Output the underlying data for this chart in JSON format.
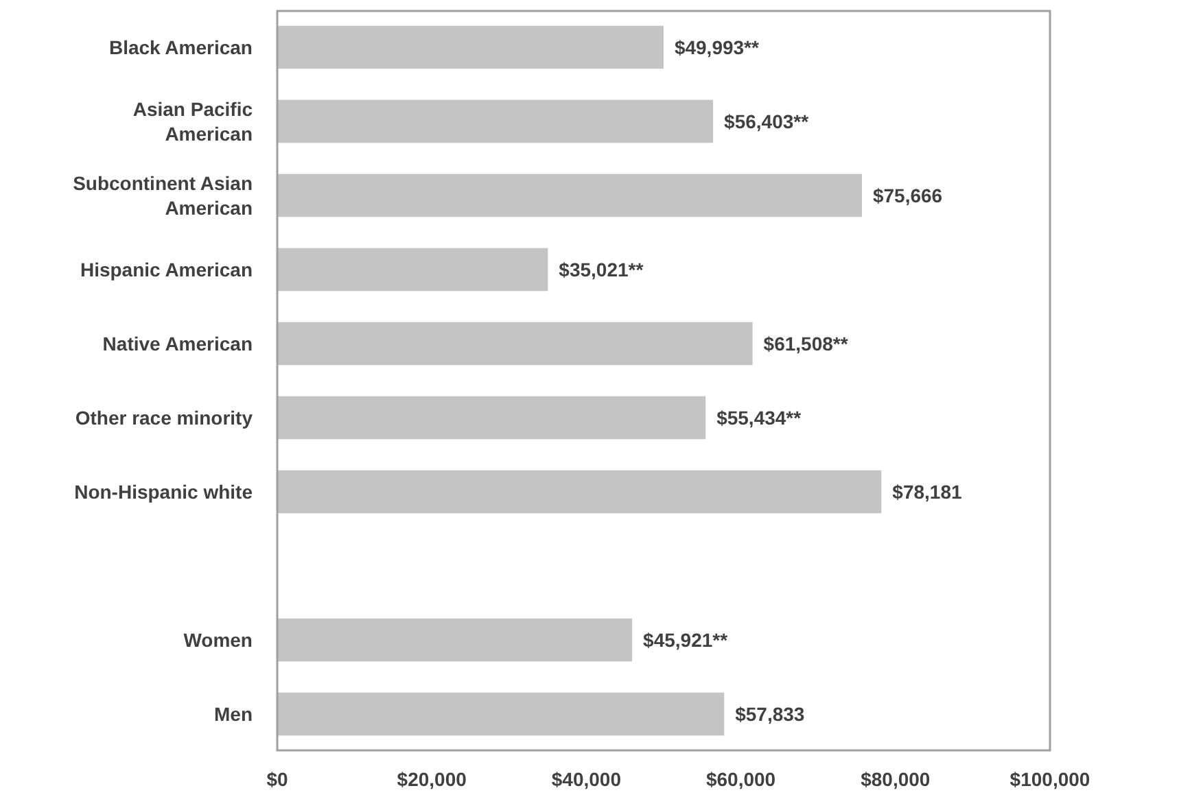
{
  "chart_data": {
    "type": "bar",
    "orientation": "horizontal",
    "categories": [
      "Black American",
      "Asian Pacific American",
      "Subcontinent Asian American",
      "Hispanic American",
      "Native American",
      "Other race minority",
      "Non-Hispanic white",
      null,
      "Women",
      "Men"
    ],
    "values": [
      49993,
      56403,
      75666,
      35021,
      61508,
      55434,
      78181,
      null,
      45921,
      57833
    ],
    "value_labels": [
      "$49,993**",
      "$56,403**",
      "$75,666",
      "$35,021**",
      "$61,508**",
      "$55,434**",
      "$78,181",
      null,
      "$45,921**",
      "$57,833"
    ],
    "color": "#c4c4c4",
    "xlim": [
      0,
      100000
    ],
    "xticks": [
      {
        "value": 0,
        "label": "$0"
      },
      {
        "value": 20000,
        "label": "$20,000"
      },
      {
        "value": 40000,
        "label": "$40,000"
      },
      {
        "value": 60000,
        "label": "$60,000"
      },
      {
        "value": 80000,
        "label": "$80,000"
      },
      {
        "value": 100000,
        "label": "$100,000"
      }
    ],
    "grid": false
  }
}
